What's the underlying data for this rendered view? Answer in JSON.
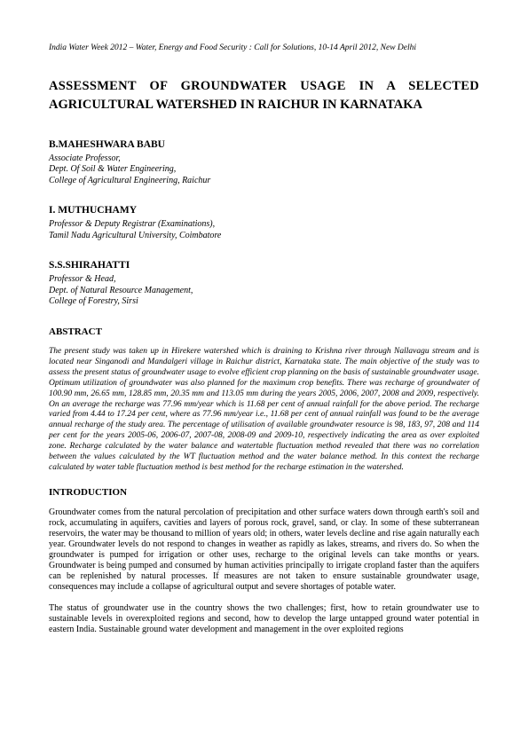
{
  "header": {
    "note": "India Water Week 2012 – Water, Energy and Food Security : Call for Solutions, 10-14 April 2012, New Delhi"
  },
  "title": {
    "line1": "ASSESSMENT OF GROUNDWATER USAGE IN A SELECTED",
    "line2": "AGRICULTURAL WATERSHED IN RAICHUR IN KARNATAKA"
  },
  "authors": [
    {
      "name": "B.MAHESHWARA BABU",
      "info": "Associate Professor,\nDept. Of Soil & Water Engineering,\nCollege of Agricultural Engineering, Raichur"
    },
    {
      "name": "I. MUTHUCHAMY",
      "info": "Professor & Deputy Registrar (Examinations),\nTamil Nadu Agricultural University, Coimbatore"
    },
    {
      "name": "S.S.SHIRAHATTI",
      "info": "Professor & Head,\nDept. of Natural Resource Management,\nCollege of Forestry, Sirsi"
    }
  ],
  "abstract": {
    "heading": "ABSTRACT",
    "text": "The present study was taken up in Hirekere watershed which is draining to Krishna river through Nallavagu stream and is located near Singanodi and Mandalgeri village in Raichur district, Karnataka state. The main objective of the study was to assess the present status of groundwater usage to evolve efficient crop planning on the basis of sustainable groundwater usage. Optimum utilization of groundwater was also planned for the maximum crop benefits. There was recharge of groundwater of 100.90 mm, 26.65 mm, 128.85 mm, 20.35 mm and 113.05 mm during the years 2005, 2006, 2007, 2008 and 2009, respectively. On an average the recharge was 77.96 mm/year which is 11.68 per cent of annual rainfall for the above period. The recharge varied from 4.44 to 17.24 per cent, where as 77.96 mm/year i.e., 11.68 per cent of annual rainfall was found to be the average annual recharge of the study area. The percentage of utilisation of available groundwater resource is 98, 183, 97, 208 and 114 per cent for the years 2005-06, 2006-07, 2007-08, 2008-09 and 2009-10, respectively indicating the area as over exploited zone. Recharge calculated by the water balance and watertable fluctuation method revealed that there was no correlation between the values calculated by the WT fluctuation method and the water balance method. In this context the recharge calculated by water table fluctuation method is best method for the recharge estimation in the watershed."
  },
  "introduction": {
    "heading": "INTRODUCTION",
    "para1": "Groundwater comes from the natural percolation of precipitation and other surface waters down through earth's soil and rock, accumulating in aquifers, cavities and layers of porous rock, gravel, sand, or clay. In some of these subterranean reservoirs, the water may be thousand to million of years old; in others, water levels decline and rise again naturally each year. Groundwater levels do not respond to changes in weather as rapidly as lakes, streams, and rivers do. So when the groundwater is pumped for irrigation or other uses, recharge to the original levels can take months or years. Groundwater is being pumped and consumed by human activities principally to irrigate cropland faster than the aquifers can be replenished by natural processes. If measures are not taken to ensure sustainable groundwater usage, consequences may include a collapse of agricultural output and severe shortages of potable water.",
    "para2": "The status of groundwater use in the country shows the two challenges; first, how to retain groundwater use to sustainable levels in overexploited regions and second, how to develop the large untapped ground water potential in eastern India. Sustainable ground water development and management in the over exploited regions"
  }
}
